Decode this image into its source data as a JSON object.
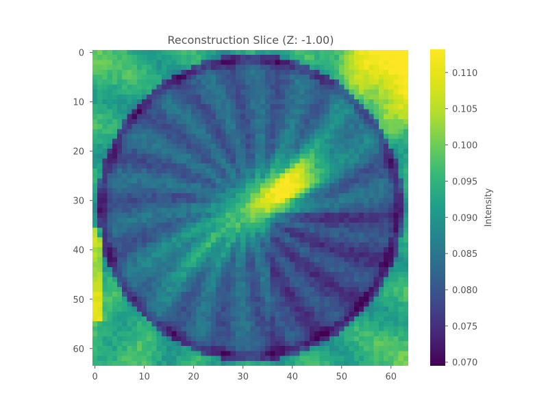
{
  "chart_data": {
    "type": "heatmap",
    "title": "Reconstruction Slice (Z: -1.00)",
    "grid_size": [
      64,
      64
    ],
    "x_ticks": [
      0,
      10,
      20,
      30,
      40,
      50,
      60
    ],
    "y_ticks": [
      0,
      10,
      20,
      30,
      40,
      50,
      60
    ],
    "xlim": [
      0,
      63
    ],
    "ylim": [
      0,
      63
    ],
    "y_axis_inverted": true,
    "grid": false,
    "colormap": "viridis",
    "colorbar": {
      "label": "Intensity",
      "range": [
        0.0695,
        0.1132
      ],
      "ticks": [
        0.07,
        0.075,
        0.08,
        0.085,
        0.09,
        0.095,
        0.1,
        0.105,
        0.11
      ],
      "tick_labels": [
        "0.070",
        "0.075",
        "0.080",
        "0.085",
        "0.090",
        "0.095",
        "0.100",
        "0.105",
        "0.110"
      ]
    },
    "value_summary": {
      "background": 0.082,
      "peak_region": {
        "x_range": [
          33,
          45
        ],
        "y_range": [
          22,
          33
        ],
        "value": 0.108
      },
      "ring": {
        "center": [
          31.5,
          31.5
        ],
        "radius_px": 30,
        "edge_value": 0.074
      },
      "bright_corner": {
        "position": "top-right",
        "value": 0.102
      },
      "streak_angle_deg": -38
    }
  }
}
